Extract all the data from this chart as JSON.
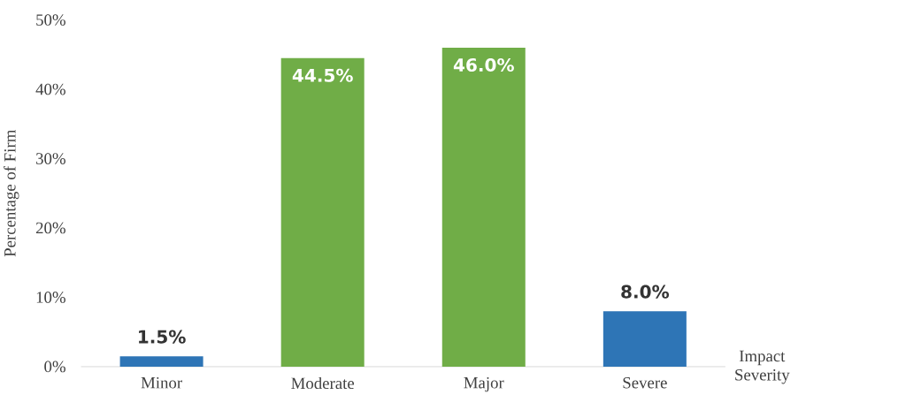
{
  "chart_data": {
    "type": "bar",
    "categories": [
      "Minor",
      "Moderate",
      "Major",
      "Severe"
    ],
    "values": [
      1.5,
      44.5,
      46.0,
      8.0
    ],
    "colors": [
      "#2e75b6",
      "#70ad47",
      "#70ad47",
      "#2e75b6"
    ],
    "value_labels": [
      "1.5%",
      "44.5%",
      "46.0%",
      "8.0%"
    ],
    "ylim": [
      0,
      50
    ],
    "yticks": [
      {
        "value": 0,
        "label": "0%"
      },
      {
        "value": 10,
        "label": "10%"
      },
      {
        "value": 20,
        "label": "20%"
      },
      {
        "value": 30,
        "label": "30%"
      },
      {
        "value": 40,
        "label": "40%"
      },
      {
        "value": 50,
        "label": "50%"
      }
    ],
    "xlabel": "Impact Severity",
    "ylabel": "Percentage of Firm",
    "grid": false
  }
}
